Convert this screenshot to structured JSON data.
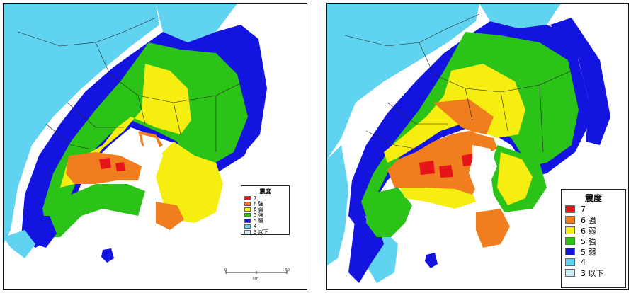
{
  "panels": [
    {
      "legend": {
        "title": "震度",
        "items": [
          {
            "label": "7",
            "color": "#e8141b"
          },
          {
            "label": "6 強",
            "color": "#f07d1e"
          },
          {
            "label": "6 弱",
            "color": "#f5ee10"
          },
          {
            "label": "5 強",
            "color": "#2bc317"
          },
          {
            "label": "5 弱",
            "color": "#1414e0"
          },
          {
            "label": "4",
            "color": "#5fd3ef"
          },
          {
            "label": "3 以下",
            "color": "#cdeef6"
          }
        ]
      },
      "scale": {
        "start": "0",
        "end": "50",
        "unit": "km"
      }
    },
    {
      "legend": {
        "title": "震度",
        "items": [
          {
            "label": "7",
            "color": "#e8141b"
          },
          {
            "label": "6 強",
            "color": "#f07d1e"
          },
          {
            "label": "6 弱",
            "color": "#f5ee10"
          },
          {
            "label": "5 強",
            "color": "#2bc317"
          },
          {
            "label": "5 弱",
            "color": "#1414e0"
          },
          {
            "label": "4",
            "color": "#5fd3ef"
          },
          {
            "label": "3 以下",
            "color": "#cdeef6"
          }
        ]
      }
    }
  ]
}
